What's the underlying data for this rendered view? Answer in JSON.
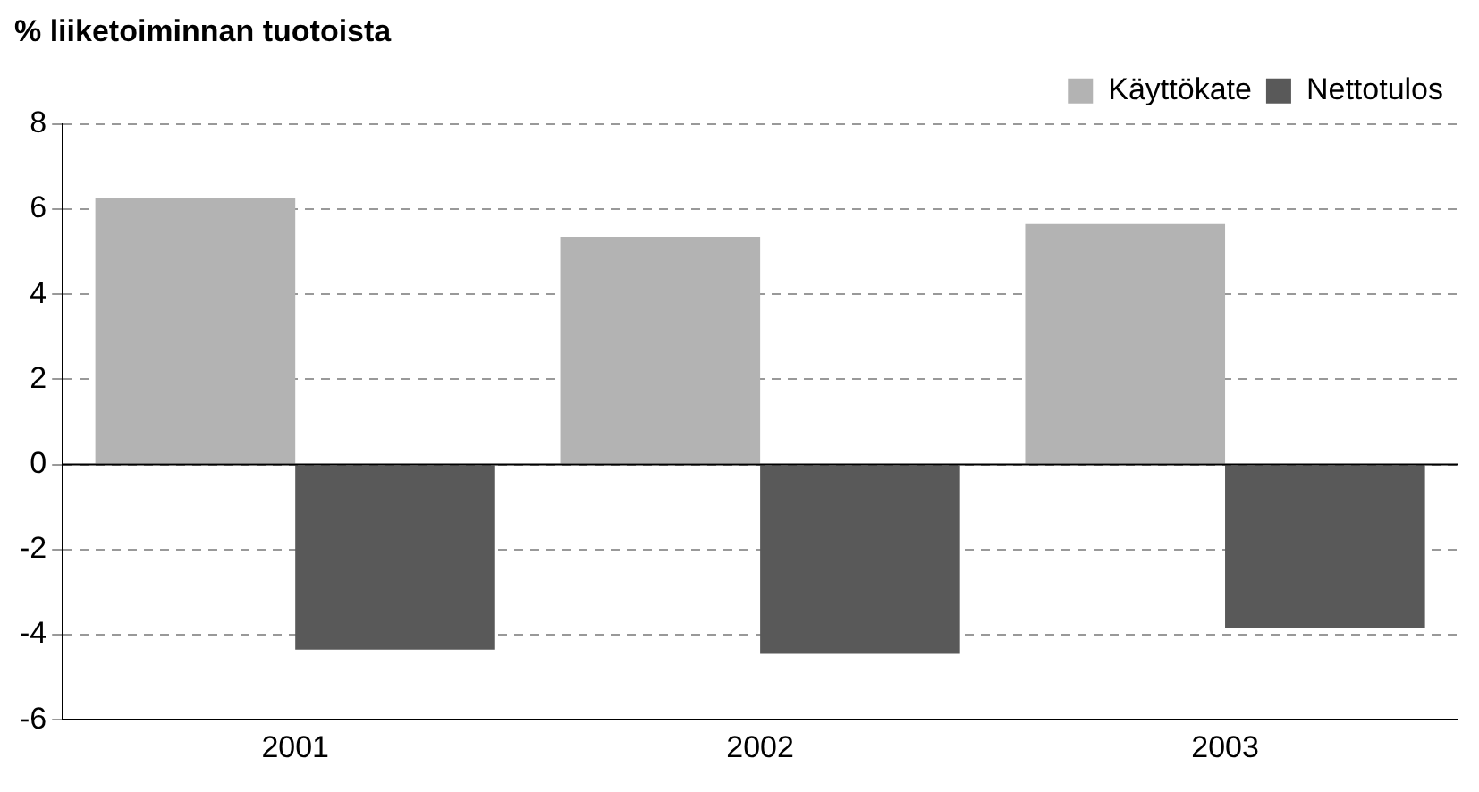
{
  "chart_data": {
    "type": "bar",
    "ylabel": "% liiketoiminnan tuotoista",
    "categories": [
      "2001",
      "2002",
      "2003"
    ],
    "series": [
      {
        "name": "Käyttökate",
        "color": "#b3b3b3",
        "values": [
          6.25,
          5.35,
          5.65
        ]
      },
      {
        "name": "Nettotulos",
        "color": "#595959",
        "values": [
          -4.35,
          -4.45,
          -3.85
        ]
      }
    ],
    "ylim": [
      -6,
      8
    ],
    "yticks": [
      -6,
      -4,
      -2,
      0,
      2,
      4,
      6,
      8
    ],
    "grid": "y",
    "legend": "top right"
  }
}
